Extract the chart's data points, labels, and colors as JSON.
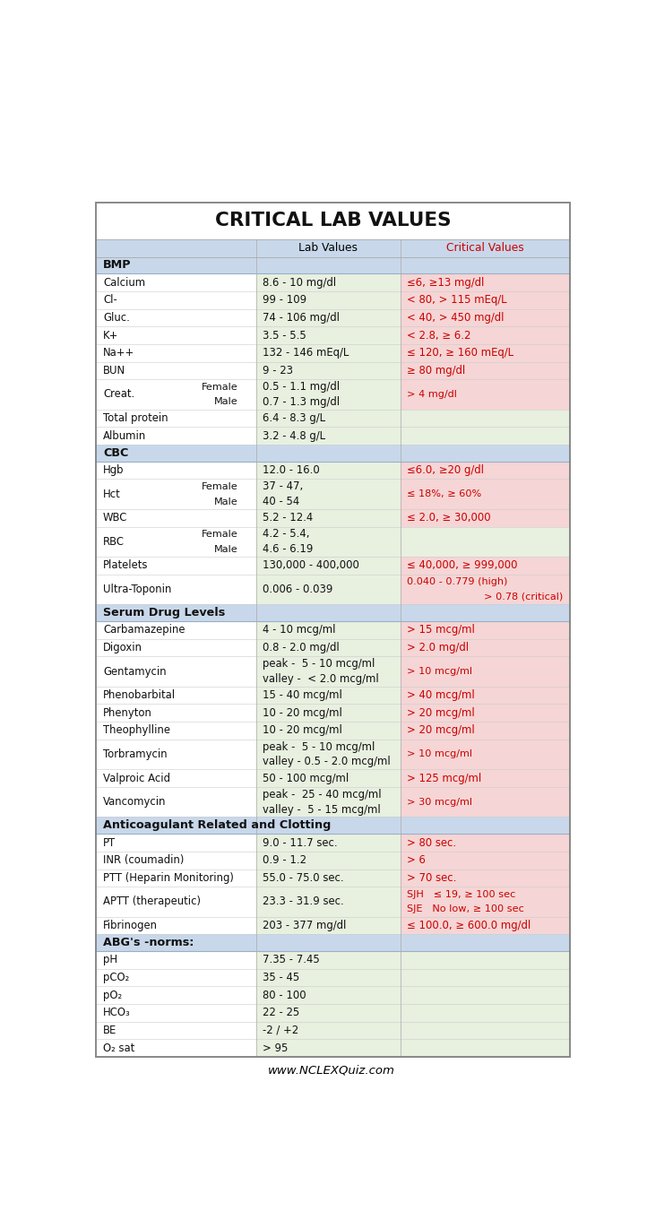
{
  "title": "CRITICAL LAB VALUES",
  "footer": "www.NCLEXQuiz.com",
  "col_header_lab": "Lab Values",
  "col_header_critical": "Critical Values",
  "header_bg": "#c8d8ea",
  "section_bg": "#c8d8ea",
  "lab_bg": "#e8f0e0",
  "critical_bg": "#f5d5d5",
  "no_critical_bg": "#e8f0e0",
  "title_color": "#111111",
  "section_text_color": "#111111",
  "name_text_color": "#111111",
  "lab_text_color": "#111111",
  "critical_text_color": "#cc0000",
  "rows": [
    {
      "type": "section",
      "section": "BMP",
      "name": "",
      "sub": "",
      "lab": "",
      "critical": "",
      "lines": 1
    },
    {
      "type": "data",
      "section": "",
      "name": "Calcium",
      "sub": "",
      "lab": "8.6 - 10 mg/dl",
      "critical": "≤6, ≥13 mg/dl",
      "lines": 1
    },
    {
      "type": "data",
      "section": "",
      "name": "Cl-",
      "sub": "",
      "lab": "99 - 109",
      "critical": "< 80, > 115 mEq/L",
      "lines": 1
    },
    {
      "type": "data",
      "section": "",
      "name": "Gluc.",
      "sub": "",
      "lab": "74 - 106 mg/dl",
      "critical": "< 40, > 450 mg/dl",
      "lines": 1
    },
    {
      "type": "data",
      "section": "",
      "name": "K+",
      "sub": "",
      "lab": "3.5 - 5.5",
      "critical": "< 2.8, ≥ 6.2",
      "lines": 1
    },
    {
      "type": "data",
      "section": "",
      "name": "Na++",
      "sub": "",
      "lab": "132 - 146 mEq/L",
      "critical": "≤ 120, ≥ 160 mEq/L",
      "lines": 1
    },
    {
      "type": "data",
      "section": "",
      "name": "BUN",
      "sub": "",
      "lab": "9 - 23",
      "critical": "≥ 80 mg/dl",
      "lines": 1
    },
    {
      "type": "data2",
      "section": "",
      "name": "Creat.",
      "sub": "Female\nMale",
      "lab": "0.5 - 1.1 mg/dl\n0.7 - 1.3 mg/dl",
      "critical": "> 4 mg/dl",
      "lines": 2
    },
    {
      "type": "data",
      "section": "",
      "name": "Total protein",
      "sub": "",
      "lab": "6.4 - 8.3 g/L",
      "critical": "",
      "lines": 1
    },
    {
      "type": "data",
      "section": "",
      "name": "Albumin",
      "sub": "",
      "lab": "3.2 - 4.8 g/L",
      "critical": "",
      "lines": 1
    },
    {
      "type": "section",
      "section": "CBC",
      "name": "",
      "sub": "",
      "lab": "",
      "critical": "",
      "lines": 1
    },
    {
      "type": "data",
      "section": "",
      "name": "Hgb",
      "sub": "",
      "lab": "12.0 - 16.0",
      "critical": "≤6.0, ≥20 g/dl",
      "lines": 1
    },
    {
      "type": "data2",
      "section": "",
      "name": "Hct",
      "sub": "Female\nMale",
      "lab": "37 - 47,\n40 - 54",
      "critical": "≤ 18%, ≥ 60%",
      "lines": 2
    },
    {
      "type": "data",
      "section": "",
      "name": "WBC",
      "sub": "",
      "lab": "5.2 - 12.4",
      "critical": "≤ 2.0, ≥ 30,000",
      "lines": 1
    },
    {
      "type": "data2",
      "section": "",
      "name": "RBC",
      "sub": "Female\nMale",
      "lab": "4.2 - 5.4,\n4.6 - 6.19",
      "critical": "",
      "lines": 2
    },
    {
      "type": "data",
      "section": "",
      "name": "Platelets",
      "sub": "",
      "lab": "130,000 - 400,000",
      "critical": "≤ 40,000, ≥ 999,000",
      "lines": 1
    },
    {
      "type": "data2",
      "section": "",
      "name": "Ultra-Toponin",
      "sub": "",
      "lab": "0.006 - 0.039",
      "critical": "0.040 - 0.779 (high)\n> 0.78 (critical)",
      "lines": 2
    },
    {
      "type": "section",
      "section": "Serum Drug Levels",
      "name": "",
      "sub": "",
      "lab": "",
      "critical": "",
      "lines": 1
    },
    {
      "type": "data",
      "section": "",
      "name": "Carbamazepine",
      "sub": "",
      "lab": "4 - 10 mcg/ml",
      "critical": "> 15 mcg/ml",
      "lines": 1
    },
    {
      "type": "data",
      "section": "",
      "name": "Digoxin",
      "sub": "",
      "lab": "0.8 - 2.0 mg/dl",
      "critical": "> 2.0 mg/dl",
      "lines": 1
    },
    {
      "type": "data2",
      "section": "",
      "name": "Gentamycin",
      "sub": "",
      "lab": "peak -  5 - 10 mcg/ml\nvalley -  < 2.0 mcg/ml",
      "critical": "> 10 mcg/ml",
      "lines": 2
    },
    {
      "type": "data",
      "section": "",
      "name": "Phenobarbital",
      "sub": "",
      "lab": "15 - 40 mcg/ml",
      "critical": "> 40 mcg/ml",
      "lines": 1
    },
    {
      "type": "data",
      "section": "",
      "name": "Phenyton",
      "sub": "",
      "lab": "10 - 20 mcg/ml",
      "critical": "> 20 mcg/ml",
      "lines": 1
    },
    {
      "type": "data",
      "section": "",
      "name": "Theophylline",
      "sub": "",
      "lab": "10 - 20 mcg/ml",
      "critical": "> 20 mcg/ml",
      "lines": 1
    },
    {
      "type": "data2",
      "section": "",
      "name": "Torbramycin",
      "sub": "",
      "lab": "peak -  5 - 10 mcg/ml\nvalley - 0.5 - 2.0 mcg/ml",
      "critical": "> 10 mcg/ml",
      "lines": 2
    },
    {
      "type": "data",
      "section": "",
      "name": "Valproic Acid",
      "sub": "",
      "lab": "50 - 100 mcg/ml",
      "critical": "> 125 mcg/ml",
      "lines": 1
    },
    {
      "type": "data2",
      "section": "",
      "name": "Vancomycin",
      "sub": "",
      "lab": "peak -  25 - 40 mcg/ml\nvalley -  5 - 15 mcg/ml",
      "critical": "> 30 mcg/ml",
      "lines": 2
    },
    {
      "type": "section",
      "section": "Anticoagulant Related and Clotting",
      "name": "",
      "sub": "",
      "lab": "",
      "critical": "",
      "lines": 1
    },
    {
      "type": "data",
      "section": "",
      "name": "PT",
      "sub": "",
      "lab": "9.0 - 11.7 sec.",
      "critical": "> 80 sec.",
      "lines": 1
    },
    {
      "type": "data",
      "section": "",
      "name": "INR (coumadin)",
      "sub": "",
      "lab": "0.9 - 1.2",
      "critical": "> 6",
      "lines": 1
    },
    {
      "type": "data",
      "section": "",
      "name": "PTT (Heparin Monitoring)",
      "sub": "",
      "lab": "55.0 - 75.0 sec.",
      "critical": "> 70 sec.",
      "lines": 1
    },
    {
      "type": "data2",
      "section": "",
      "name": "APTT (therapeutic)",
      "sub": "",
      "lab": "23.3 - 31.9 sec.",
      "critical": "SJH   ≤ 19, ≥ 100 sec\nSJE   No low, ≥ 100 sec",
      "lines": 2
    },
    {
      "type": "data",
      "section": "",
      "name": "Fibrinogen",
      "sub": "",
      "lab": "203 - 377 mg/dl",
      "critical": "≤ 100.0, ≥ 600.0 mg/dl",
      "lines": 1
    },
    {
      "type": "section",
      "section": "ABG's -norms:",
      "name": "",
      "sub": "",
      "lab": "",
      "critical": "",
      "lines": 1
    },
    {
      "type": "data_nc",
      "section": "",
      "name": "pH",
      "sub": "",
      "lab": "7.35 - 7.45",
      "critical": "",
      "lines": 1
    },
    {
      "type": "data_nc",
      "section": "",
      "name": "pCO₂",
      "sub": "",
      "lab": "35 - 45",
      "critical": "",
      "lines": 1
    },
    {
      "type": "data_nc",
      "section": "",
      "name": "pO₂",
      "sub": "",
      "lab": "80 - 100",
      "critical": "",
      "lines": 1
    },
    {
      "type": "data_nc",
      "section": "",
      "name": "HCO₃",
      "sub": "",
      "lab": "22 - 25",
      "critical": "",
      "lines": 1
    },
    {
      "type": "data_nc",
      "section": "",
      "name": "BE",
      "sub": "",
      "lab": "-2 / +2",
      "critical": "",
      "lines": 1
    },
    {
      "type": "data_nc",
      "section": "",
      "name": "O₂ sat",
      "sub": "",
      "lab": "> 95",
      "critical": "",
      "lines": 1
    }
  ]
}
